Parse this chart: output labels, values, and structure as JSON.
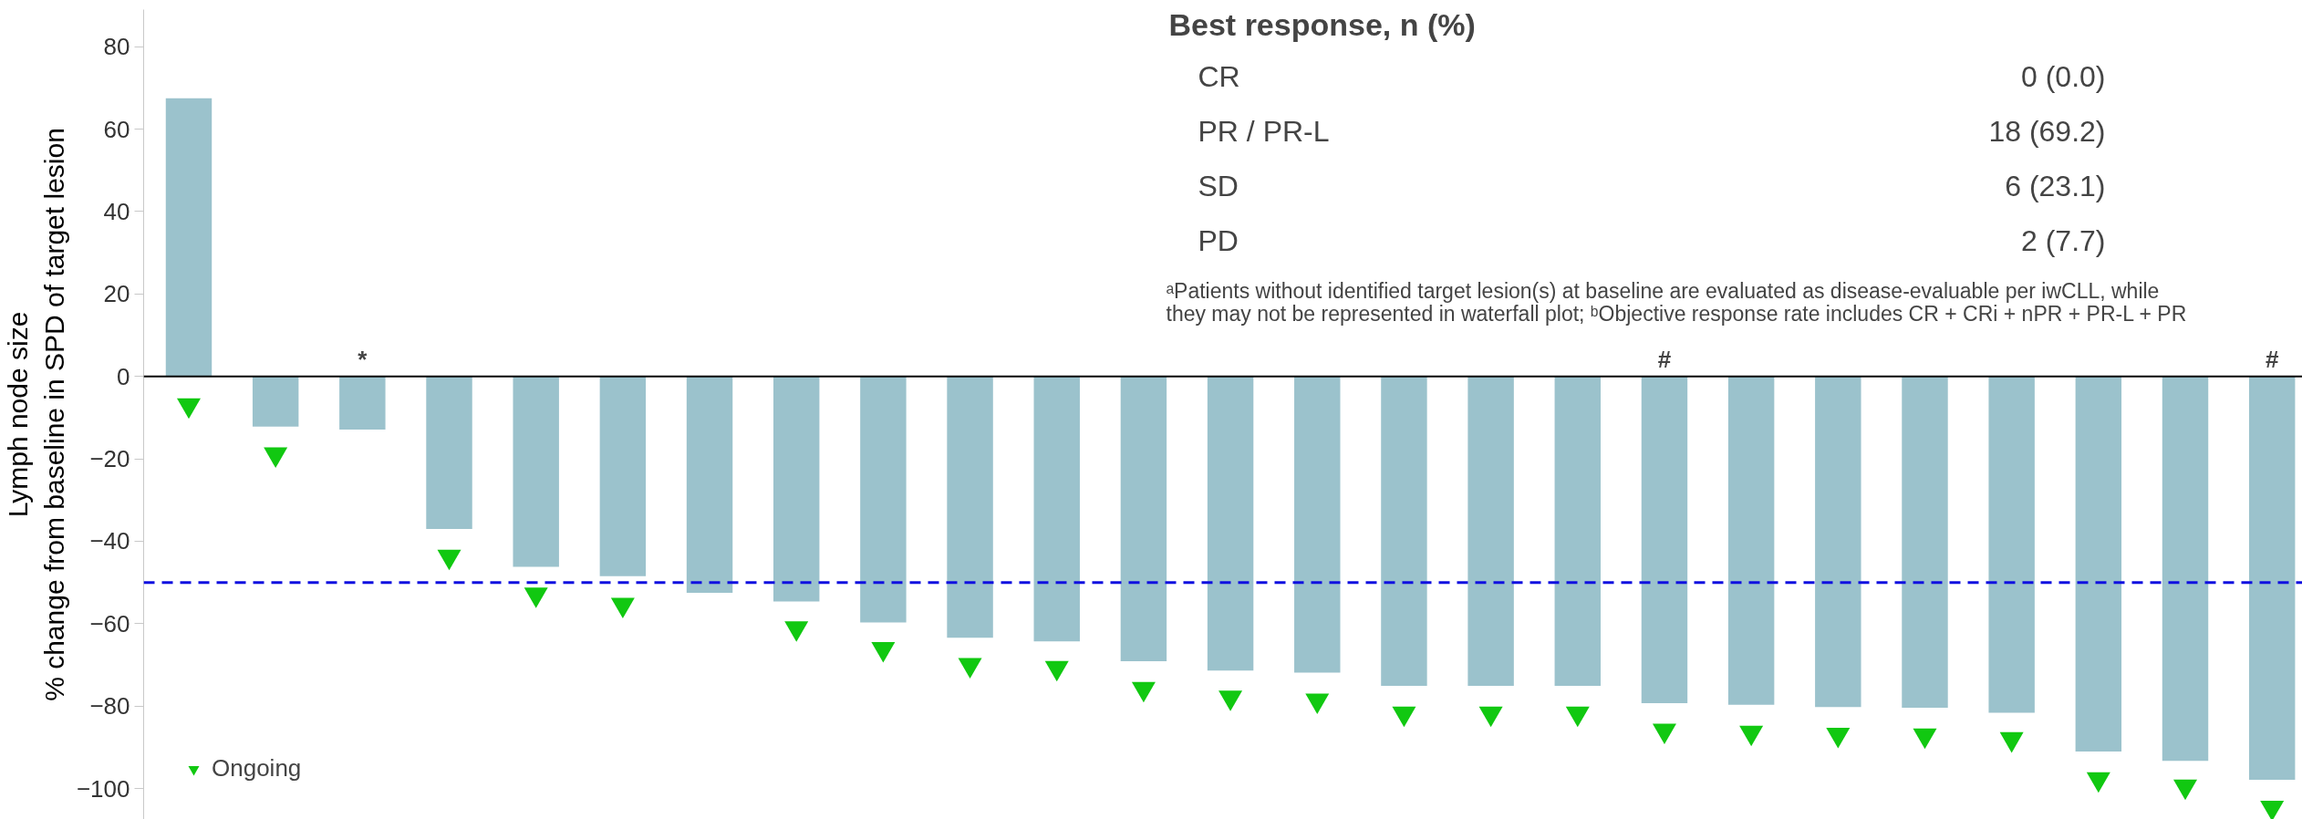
{
  "chart_data": {
    "type": "bar",
    "ylabel": "Lymph node size\n% change from baseline in SPD of target lesion",
    "categories": [
      null,
      null,
      null,
      null,
      null,
      null,
      null,
      null,
      null,
      null,
      null,
      null,
      null,
      null,
      null,
      null,
      null,
      null,
      null,
      null,
      null,
      null,
      null,
      null,
      null
    ],
    "series": [
      {
        "color": "#9bc2cc",
        "values": [
          67.5,
          -12.2,
          -12.9,
          -37,
          -46.2,
          -48.5,
          -52.5,
          -54.6,
          -59.7,
          -63.4,
          -64.3,
          -69.1,
          -71.4,
          -71.9,
          -75.1,
          -75.1,
          -75.1,
          -79.3,
          -79.7,
          -80.2,
          -80.4,
          -81.6,
          -91,
          -93.3,
          -97.9
        ],
        "value_labels": [
          null,
          null,
          "*",
          null,
          null,
          null,
          null,
          null,
          null,
          null,
          null,
          null,
          null,
          null,
          null,
          null,
          null,
          "#",
          null,
          null,
          null,
          null,
          null,
          null,
          "#"
        ]
      },
      {
        "type": "scatter",
        "name": "Ongoing",
        "color": "#11c811",
        "marker": "triangle",
        "values": [
          -7,
          -18.9,
          null,
          -43.7,
          -52.9,
          -55.4,
          null,
          -61.1,
          -66.1,
          -70,
          -70.7,
          -75.8,
          -77.9,
          -78.6,
          -81.8,
          -81.8,
          -81.8,
          -85.9,
          -86.4,
          -86.9,
          -87.1,
          -88,
          -97.7,
          -99.5,
          -104.6
        ]
      }
    ],
    "ylim": [
      -107.5,
      89
    ],
    "yticks": [
      -100,
      -80,
      -60,
      -40,
      -20,
      0,
      20,
      40,
      60,
      80
    ],
    "ref_lines": [
      {
        "axis": "y",
        "value": -50,
        "color": "#1010e0",
        "line_style": "dashed"
      }
    ],
    "legend": "bottom left",
    "tick_labels": "y",
    "annotations": [
      "Best response, n (%)",
      "CR",
      "0 (0.0)",
      "PR / PR-L",
      "18 (69.2)",
      "SD",
      "6 (23.1)",
      "PD",
      "2 (7.7)",
      "ᵃPatients without identified target lesion(s) at baseline are evaluated as disease-evaluable per iwCLL, while",
      "they may not be represented in waterfall plot; ᵇObjective response rate includes CR + CRi + nPR + PR-L + PR"
    ]
  }
}
